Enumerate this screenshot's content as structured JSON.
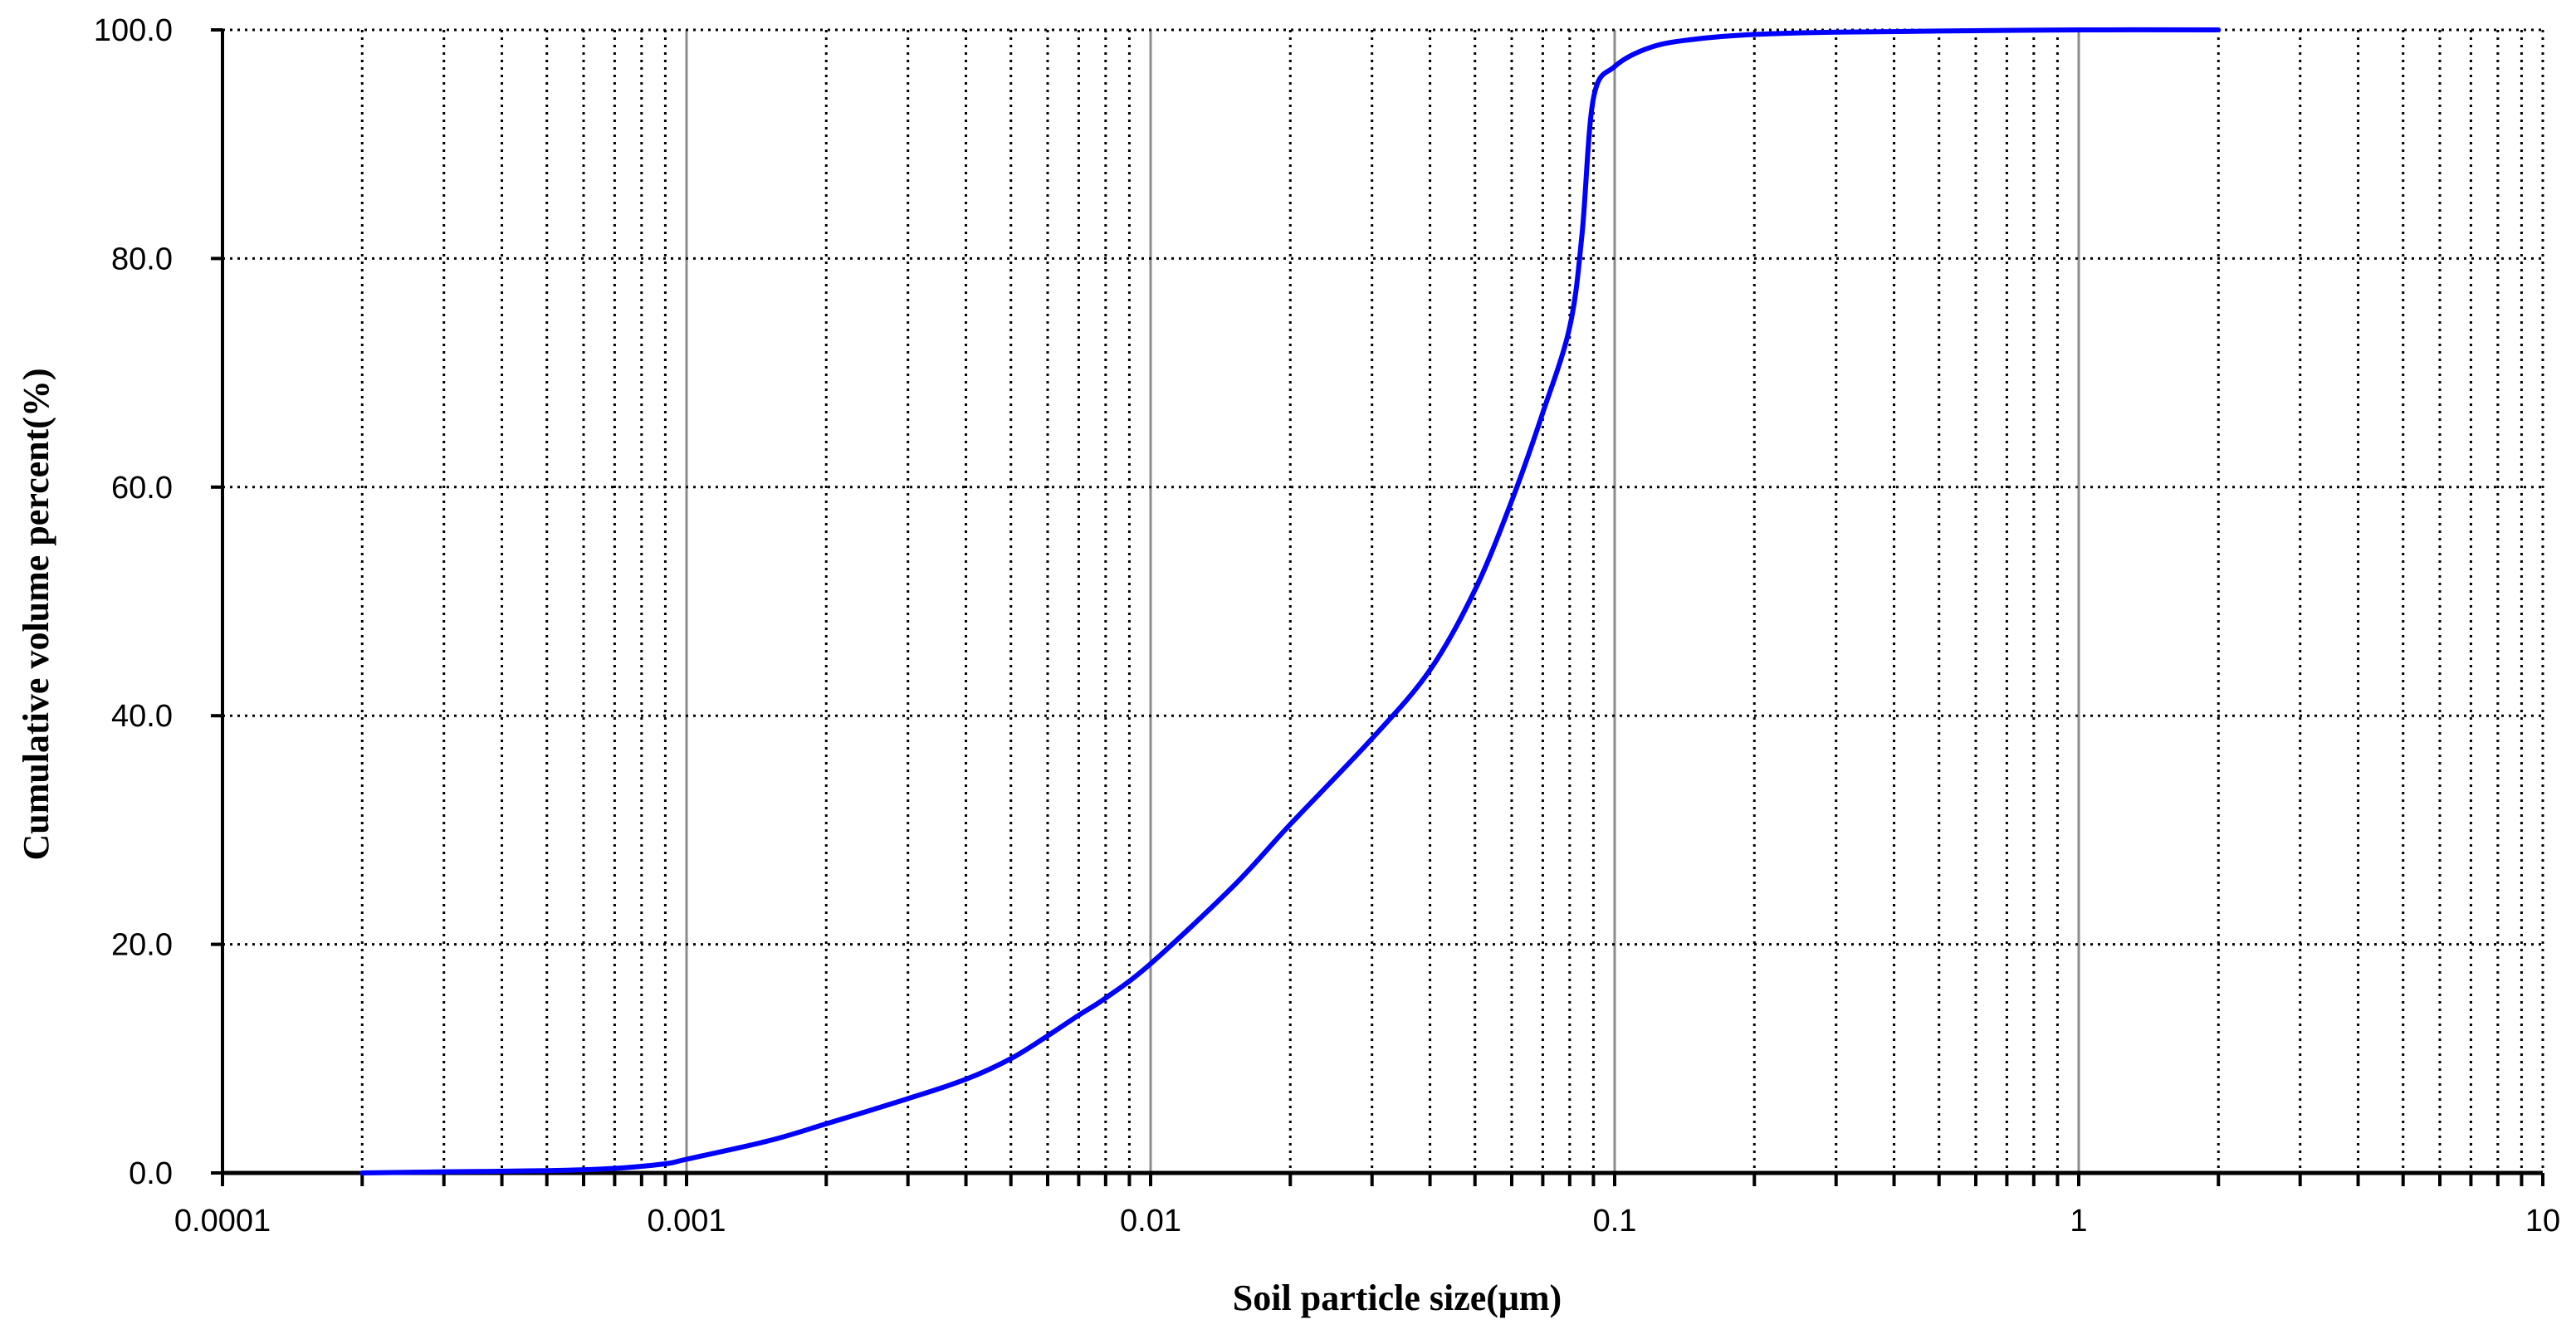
{
  "chart_data": {
    "type": "line",
    "title": "",
    "xlabel": "Soil particle size(μm)",
    "ylabel": "Cumulative volume percent(%)",
    "xscale": "log",
    "xlim": [
      0.0001,
      10
    ],
    "ylim": [
      0,
      100
    ],
    "grid": true,
    "x_ticks": [
      "0.0001",
      "0.001",
      "0.01",
      "0.1",
      "1",
      "10"
    ],
    "y_ticks": [
      "0.0",
      "20.0",
      "40.0",
      "60.0",
      "80.0",
      "100.0"
    ],
    "series": [
      {
        "color": "#0000ff",
        "x": [
          0.0002,
          0.0003,
          0.0005,
          0.0007,
          0.0009,
          0.001,
          0.0015,
          0.002,
          0.003,
          0.004,
          0.005,
          0.006,
          0.007,
          0.008,
          0.01,
          0.015,
          0.02,
          0.03,
          0.04,
          0.05,
          0.06,
          0.07,
          0.08,
          0.085,
          0.09,
          0.1,
          0.12,
          0.15,
          0.2,
          0.3,
          0.5,
          1,
          2
        ],
        "y": [
          0.0,
          0.1,
          0.2,
          0.4,
          0.8,
          1.2,
          2.8,
          4.3,
          6.5,
          8.2,
          10.0,
          12.0,
          13.8,
          15.3,
          18.3,
          25.0,
          30.5,
          38.0,
          44.0,
          51.0,
          58.8,
          66.5,
          74.0,
          82.0,
          94.0,
          96.8,
          98.5,
          99.2,
          99.6,
          99.8,
          99.9,
          100.0,
          100.0
        ]
      }
    ]
  }
}
